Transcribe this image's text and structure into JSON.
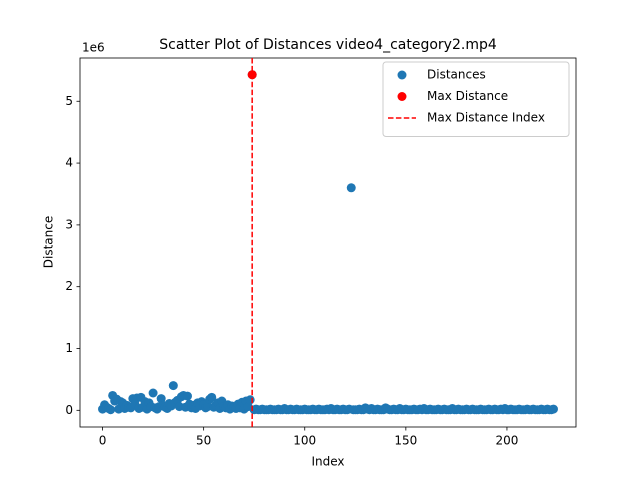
{
  "chart_data": {
    "type": "scatter",
    "title": "Scatter Plot of Distances video4_category2.mp4",
    "xlabel": "Index",
    "ylabel": "Distance",
    "y_offset_label": "1e6",
    "xlim": [
      -11.15,
      234.15
    ],
    "ylim": [
      -0.27,
      5.7
    ],
    "xticks": [
      0,
      50,
      100,
      150,
      200
    ],
    "yticks": [
      0,
      1,
      2,
      3,
      4,
      5
    ],
    "legend": "upper right",
    "series": [
      {
        "name": "Distances",
        "color": "#1f77b4",
        "x": [
          0,
          1,
          2,
          3,
          4,
          5,
          6,
          7,
          8,
          9,
          10,
          11,
          12,
          13,
          14,
          15,
          16,
          17,
          18,
          19,
          20,
          21,
          22,
          23,
          24,
          25,
          26,
          27,
          28,
          29,
          30,
          31,
          32,
          33,
          34,
          35,
          36,
          37,
          38,
          39,
          40,
          41,
          42,
          43,
          44,
          45,
          46,
          47,
          48,
          49,
          50,
          51,
          52,
          53,
          54,
          55,
          56,
          57,
          58,
          59,
          60,
          61,
          62,
          63,
          64,
          65,
          66,
          67,
          68,
          69,
          70,
          71,
          72,
          73,
          74,
          75,
          76,
          77,
          78,
          79,
          80,
          81,
          82,
          83,
          84,
          85,
          86,
          87,
          88,
          89,
          90,
          91,
          92,
          93,
          94,
          95,
          96,
          97,
          98,
          99,
          100,
          101,
          102,
          103,
          104,
          105,
          106,
          107,
          108,
          109,
          110,
          111,
          112,
          113,
          114,
          115,
          116,
          117,
          118,
          119,
          120,
          121,
          122,
          123,
          124,
          125,
          126,
          127,
          128,
          129,
          130,
          131,
          132,
          133,
          134,
          135,
          136,
          137,
          138,
          139,
          140,
          141,
          142,
          143,
          144,
          145,
          146,
          147,
          148,
          149,
          150,
          151,
          152,
          153,
          154,
          155,
          156,
          157,
          158,
          159,
          160,
          161,
          162,
          163,
          164,
          165,
          166,
          167,
          168,
          169,
          170,
          171,
          172,
          173,
          174,
          175,
          176,
          177,
          178,
          179,
          180,
          181,
          182,
          183,
          184,
          185,
          186,
          187,
          188,
          189,
          190,
          191,
          192,
          193,
          194,
          195,
          196,
          197,
          198,
          199,
          200,
          201,
          202,
          203,
          204,
          205,
          206,
          207,
          208,
          209,
          210,
          211,
          212,
          213,
          214,
          215,
          216,
          217,
          218,
          219,
          220,
          221,
          222,
          223
        ],
        "values": [
          0.02,
          0.09,
          0.05,
          0.03,
          0.01,
          0.24,
          0.15,
          0.18,
          0.02,
          0.14,
          0.12,
          0.03,
          0.08,
          0.05,
          0.04,
          0.19,
          0.1,
          0.2,
          0.03,
          0.21,
          0.05,
          0.14,
          0.02,
          0.12,
          0.06,
          0.28,
          0.04,
          0.02,
          0.06,
          0.19,
          0.08,
          0.05,
          0.03,
          0.11,
          0.07,
          0.4,
          0.13,
          0.16,
          0.06,
          0.22,
          0.24,
          0.05,
          0.23,
          0.1,
          0.04,
          0.08,
          0.03,
          0.12,
          0.07,
          0.14,
          0.09,
          0.04,
          0.06,
          0.18,
          0.21,
          0.05,
          0.08,
          0.12,
          0.03,
          0.15,
          0.06,
          0.04,
          0.09,
          0.02,
          0.07,
          0.05,
          0.03,
          0.1,
          0.04,
          0.13,
          0.02,
          0.15,
          0.06,
          0.17,
          5.43,
          0.01,
          0.02,
          0.01,
          0.01,
          0.02,
          0.01,
          0.01,
          0.01,
          0.02,
          0.01,
          0.01,
          0.01,
          0.02,
          0.01,
          0.01,
          0.03,
          0.01,
          0.01,
          0.02,
          0.01,
          0.01,
          0.02,
          0.01,
          0.01,
          0.01,
          0.02,
          0.01,
          0.01,
          0.01,
          0.02,
          0.01,
          0.01,
          0.02,
          0.01,
          0.01,
          0.01,
          0.02,
          0.01,
          0.03,
          0.01,
          0.01,
          0.02,
          0.01,
          0.01,
          0.02,
          0.01,
          0.01,
          0.02,
          3.6,
          0.01,
          0.01,
          0.01,
          0.02,
          0.01,
          0.01,
          0.04,
          0.02,
          0.01,
          0.03,
          0.01,
          0.01,
          0.02,
          0.01,
          0.01,
          0.01,
          0.04,
          0.02,
          0.01,
          0.01,
          0.02,
          0.01,
          0.01,
          0.03,
          0.01,
          0.01,
          0.02,
          0.01,
          0.01,
          0.01,
          0.02,
          0.01,
          0.01,
          0.02,
          0.01,
          0.03,
          0.01,
          0.01,
          0.02,
          0.01,
          0.01,
          0.01,
          0.02,
          0.01,
          0.01,
          0.02,
          0.01,
          0.01,
          0.01,
          0.03,
          0.01,
          0.01,
          0.02,
          0.01,
          0.01,
          0.01,
          0.02,
          0.01,
          0.01,
          0.02,
          0.01,
          0.01,
          0.01,
          0.02,
          0.01,
          0.01,
          0.01,
          0.02,
          0.01,
          0.01,
          0.02,
          0.01,
          0.01,
          0.02,
          0.01,
          0.03,
          0.01,
          0.01,
          0.02,
          0.01,
          0.01,
          0.01,
          0.02,
          0.01,
          0.01,
          0.01,
          0.02,
          0.01,
          0.01,
          0.02,
          0.01,
          0.01,
          0.01,
          0.02,
          0.01,
          0.01,
          0.02,
          0.01,
          0.01,
          0.02
        ]
      },
      {
        "name": "Max Distance",
        "color": "red",
        "x": [
          74
        ],
        "values": [
          5.43
        ]
      }
    ],
    "vline": {
      "name": "Max Distance Index",
      "color": "red",
      "x": 74,
      "style": "dashed"
    }
  }
}
